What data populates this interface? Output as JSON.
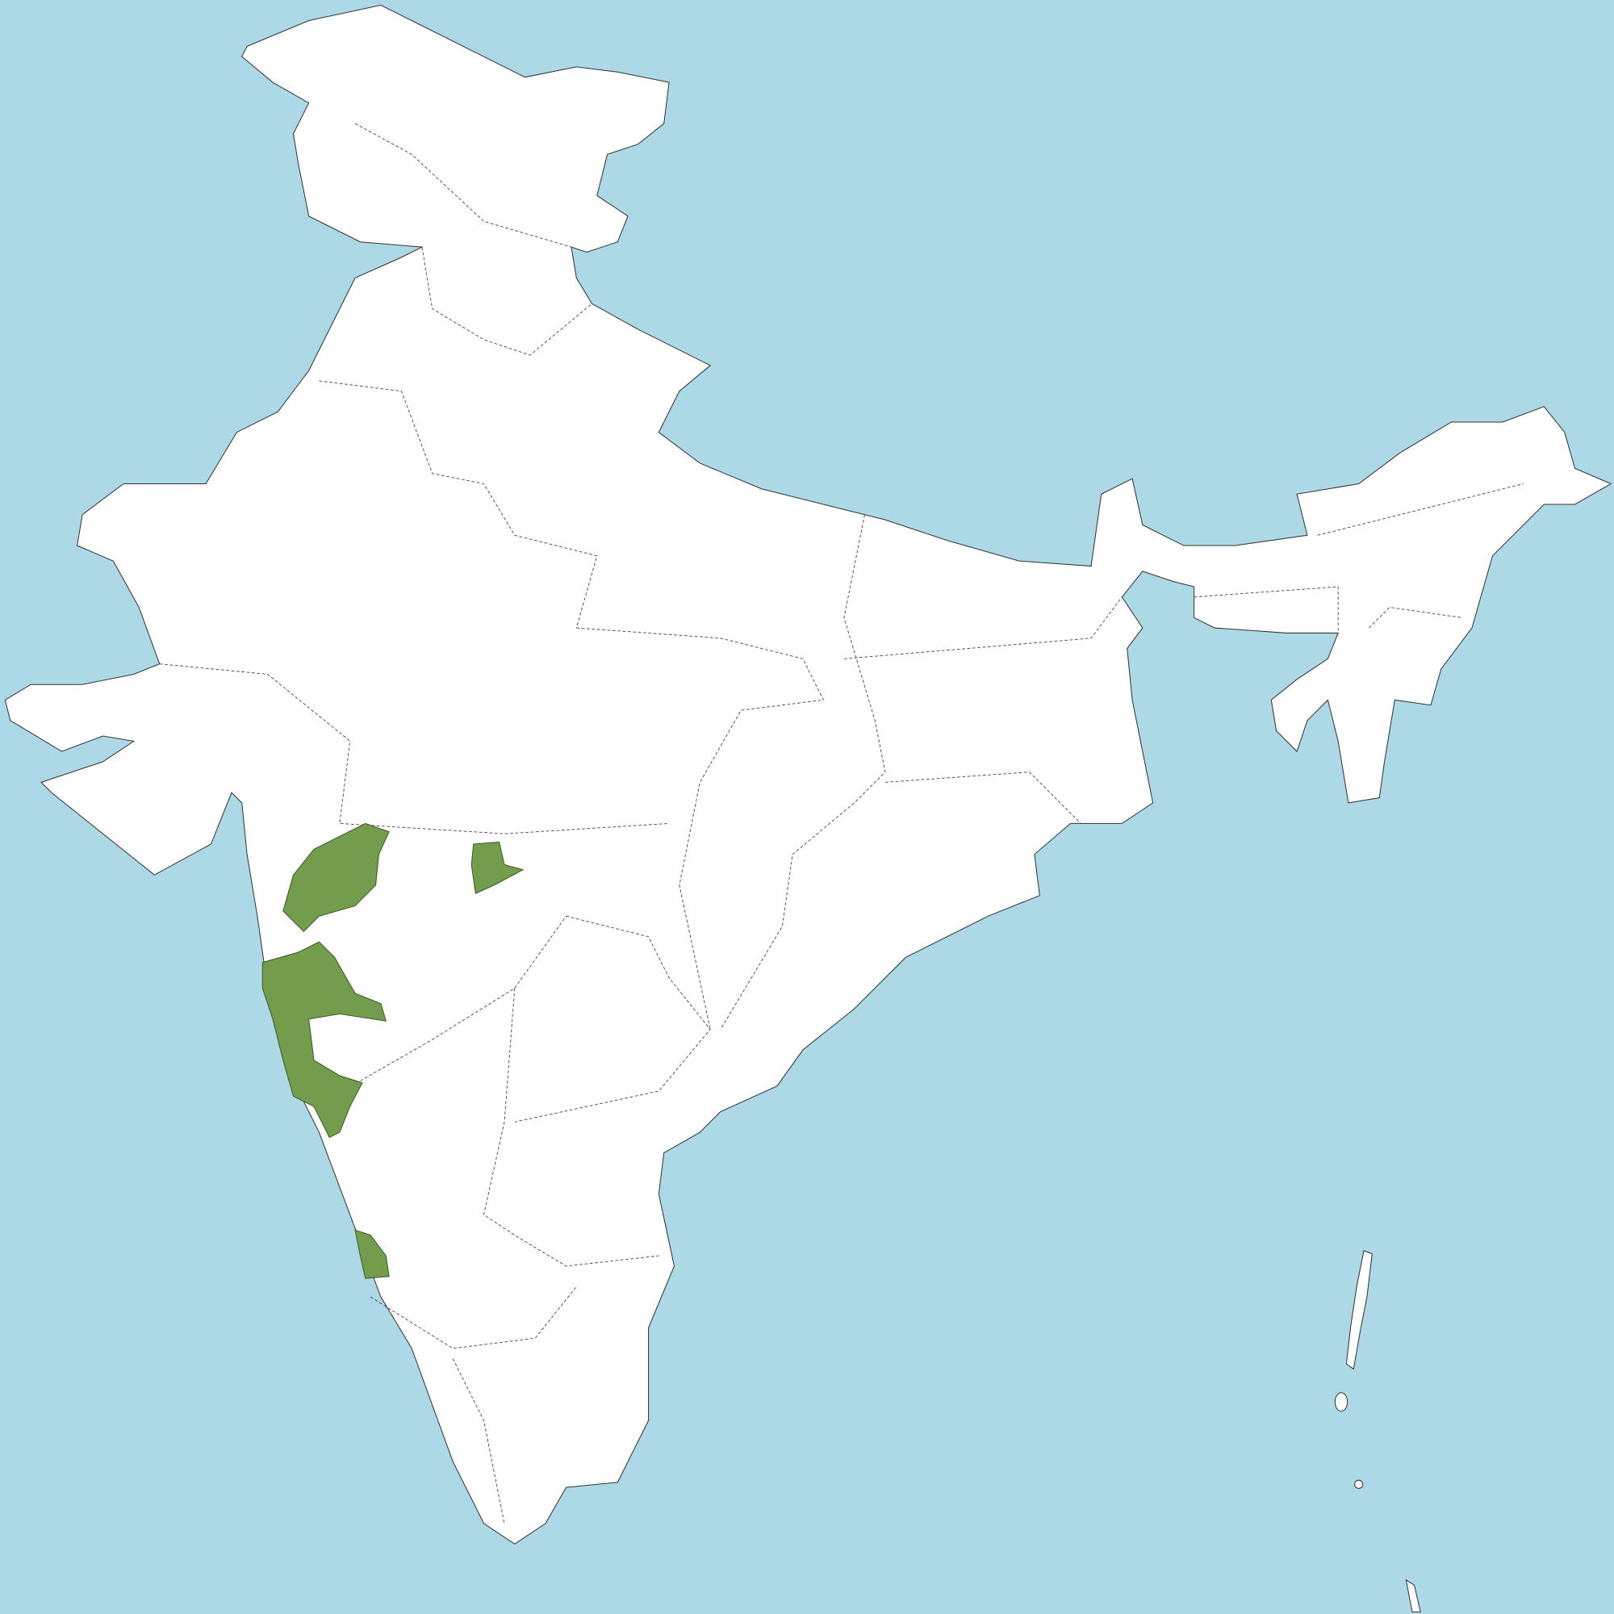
{
  "map": {
    "sea_color": "#add8e6",
    "land_color": "#ffffff",
    "highlight_color": "#739c4c",
    "border_color": "#444444",
    "highlighted_regions": [
      "west-north-district-1",
      "central-district",
      "west-coast-district-group",
      "south-west-coast-district"
    ]
  }
}
